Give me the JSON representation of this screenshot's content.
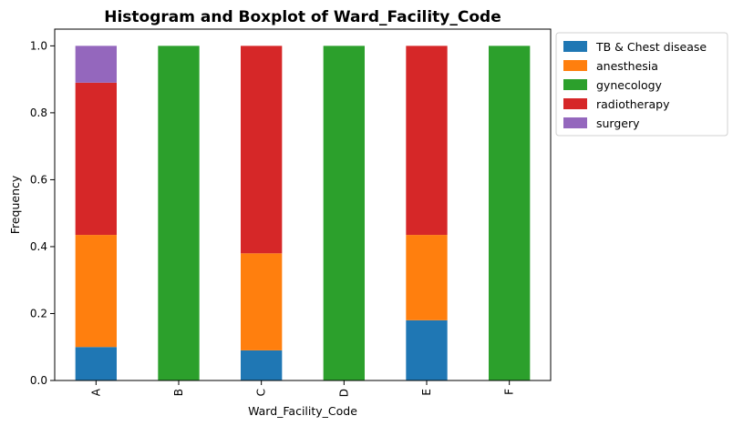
{
  "chart_data": {
    "type": "bar",
    "stacked": true,
    "title": "Histogram and Boxplot of Ward_Facility_Code",
    "xlabel": "Ward_Facility_Code",
    "ylabel": "Frequency",
    "ylim": [
      0,
      1.05
    ],
    "yticks": [
      "0.0",
      "0.2",
      "0.4",
      "0.6",
      "0.8",
      "1.0"
    ],
    "categories": [
      "A",
      "B",
      "C",
      "D",
      "E",
      "F"
    ],
    "legend_position": "outside-top-right",
    "grid": false,
    "series": [
      {
        "name": "TB & Chest disease",
        "color": "#1f77b4",
        "values": [
          0.1,
          0.0,
          0.09,
          0.0,
          0.18,
          0.0
        ]
      },
      {
        "name": "anesthesia",
        "color": "#ff7f0e",
        "values": [
          0.335,
          0.0,
          0.29,
          0.0,
          0.255,
          0.0
        ]
      },
      {
        "name": "gynecology",
        "color": "#2ca02c",
        "values": [
          0.0,
          1.0,
          0.0,
          1.0,
          0.0,
          1.0
        ]
      },
      {
        "name": "radiotherapy",
        "color": "#d62728",
        "values": [
          0.455,
          0.0,
          0.62,
          0.0,
          0.565,
          0.0
        ]
      },
      {
        "name": "surgery",
        "color": "#9467bd",
        "values": [
          0.11,
          0.0,
          0.0,
          0.0,
          0.0,
          0.0
        ]
      }
    ]
  }
}
